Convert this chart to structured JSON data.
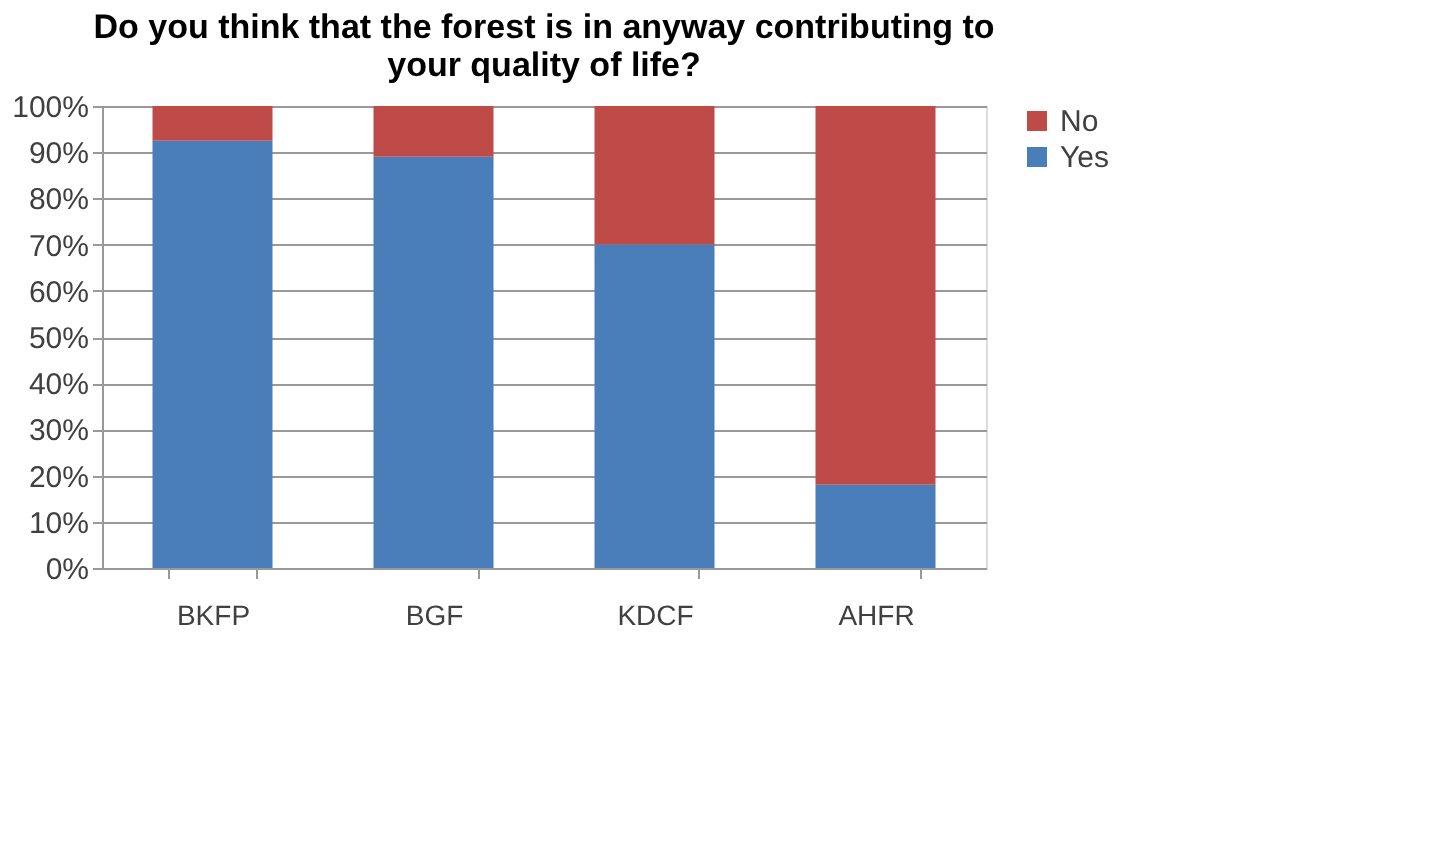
{
  "chart_data": {
    "type": "bar",
    "stacked": true,
    "title": "Do you think that the forest is in anyway contributing to your quality of life?",
    "categories": [
      "BKFP",
      "BGF",
      "KDCF",
      "AHFR"
    ],
    "series": [
      {
        "name": "Yes",
        "color": "#4a7ebb",
        "values": [
          92.5,
          89,
          70,
          18
        ]
      },
      {
        "name": "No",
        "color": "#be4b48",
        "values": [
          7.5,
          11,
          30,
          82
        ]
      }
    ],
    "ylim": [
      0,
      100
    ],
    "yticks": [
      {
        "value": 0,
        "label": "0%"
      },
      {
        "value": 10,
        "label": "10%"
      },
      {
        "value": 20,
        "label": "20%"
      },
      {
        "value": 30,
        "label": "30%"
      },
      {
        "value": 40,
        "label": "40%"
      },
      {
        "value": 50,
        "label": "50%"
      },
      {
        "value": 60,
        "label": "60%"
      },
      {
        "value": 70,
        "label": "70%"
      },
      {
        "value": 80,
        "label": "80%"
      },
      {
        "value": 90,
        "label": "90%"
      },
      {
        "value": 100,
        "label": "100%"
      }
    ],
    "grid": "y",
    "legend": "right"
  }
}
